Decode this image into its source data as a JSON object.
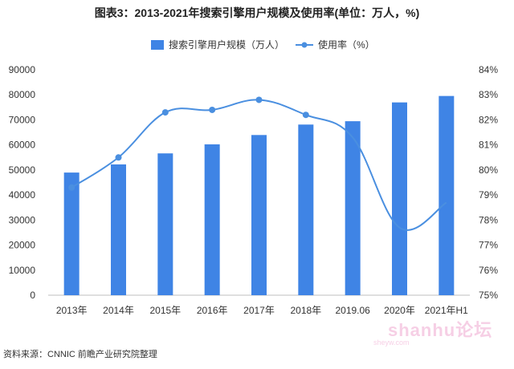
{
  "title": "图表3：2013-2021年搜索引擎用户规模及使用率(单位：万人，%)",
  "source": "资料来源：CNNIC 前瞻产业研究院整理",
  "watermark": {
    "text": "shanhu论坛",
    "subtext": "sheyw.com"
  },
  "colors": {
    "bar": "#3f84e5",
    "line": "#4a8fe0",
    "grid": "#d9d9d9",
    "text": "#333333"
  },
  "chart_data": {
    "type": "bar",
    "title": "图表3：2013-2021年搜索引擎用户规模及使用率(单位：万人，%)",
    "categories": [
      "2013年",
      "2014年",
      "2015年",
      "2016年",
      "2017年",
      "2018年",
      "2019.06",
      "2020年",
      "2021年H1"
    ],
    "series": [
      {
        "name": "搜索引擎用户规模（万人）",
        "type": "bar",
        "axis": "left",
        "values": [
          48966,
          52223,
          56623,
          60238,
          63956,
          68132,
          69470,
          76977,
          79544
        ]
      },
      {
        "name": "使用率（%）",
        "type": "line",
        "axis": "right",
        "values": [
          79.3,
          80.5,
          82.3,
          82.4,
          82.8,
          82.2,
          81.3,
          77.7,
          78.7
        ],
        "markers_shown": 6
      }
    ],
    "y_left": {
      "min": 0,
      "max": 90000,
      "ticks": [
        "0",
        "10000",
        "20000",
        "30000",
        "40000",
        "50000",
        "60000",
        "70000",
        "80000",
        "90000"
      ]
    },
    "y_right": {
      "min": 75,
      "max": 84,
      "ticks": [
        "75%",
        "76%",
        "77%",
        "78%",
        "79%",
        "80%",
        "81%",
        "82%",
        "83%",
        "84%"
      ]
    },
    "grid": false,
    "legend_position": "top-center"
  }
}
